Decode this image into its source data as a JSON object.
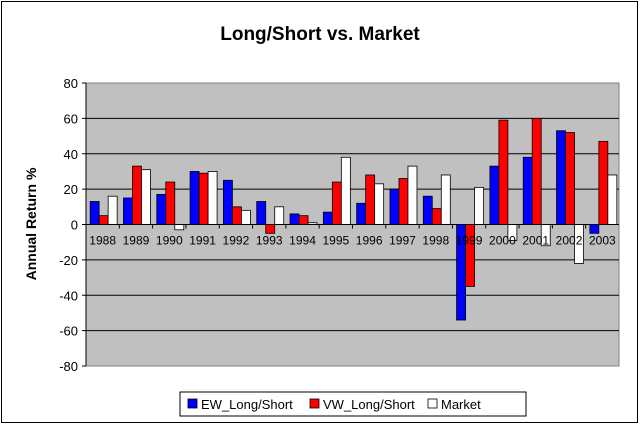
{
  "chart_data": {
    "type": "bar",
    "title": "Long/Short vs. Market",
    "xlabel": "",
    "ylabel": "Annual Return %",
    "ylim": [
      -80,
      80
    ],
    "yticks": [
      80,
      60,
      40,
      20,
      0,
      -20,
      -40,
      -60,
      -80
    ],
    "grid": true,
    "legend_position": "bottom",
    "plot_background": "#c0c0c0",
    "categories": [
      "1988",
      "1989",
      "1990",
      "1991",
      "1992",
      "1993",
      "1994",
      "1995",
      "1996",
      "1997",
      "1998",
      "1999",
      "2000",
      "2001",
      "2002",
      "2003"
    ],
    "series": [
      {
        "name": "EW_Long/Short",
        "color": "#0000ff",
        "values": [
          13,
          15,
          17,
          30,
          25,
          13,
          6,
          7,
          12,
          20,
          16,
          -54,
          33,
          38,
          53,
          -5
        ]
      },
      {
        "name": "VW_Long/Short",
        "color": "#ff0000",
        "values": [
          5,
          33,
          24,
          29,
          10,
          -5,
          5,
          24,
          28,
          26,
          9,
          -35,
          59,
          60,
          52,
          47
        ]
      },
      {
        "name": "Market",
        "color": "#ffffff",
        "values": [
          16,
          31,
          -3,
          30,
          8,
          10,
          1,
          38,
          23,
          33,
          28,
          21,
          -9,
          -12,
          -22,
          28
        ]
      }
    ]
  }
}
